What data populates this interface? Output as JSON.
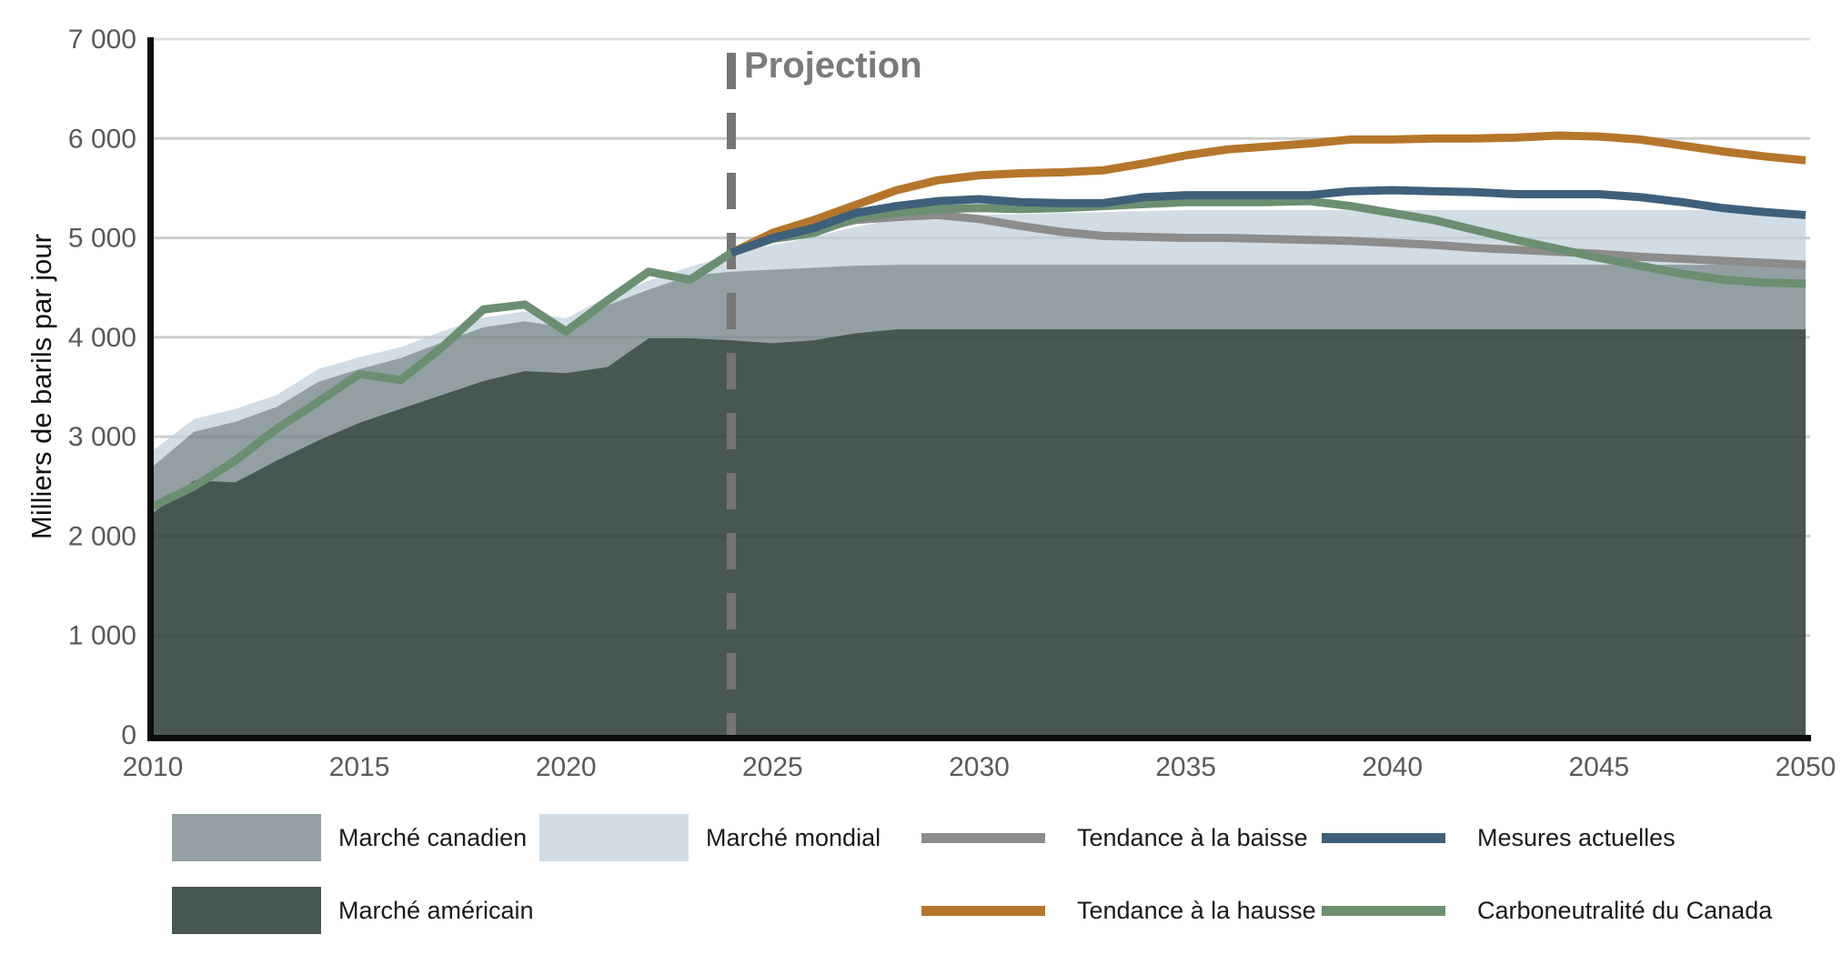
{
  "chart_data": {
    "type": "area+line",
    "title": "",
    "ylabel": "Milliers de barils par jour",
    "xlabel": "",
    "xlim": [
      2010,
      2050
    ],
    "ylim": [
      0,
      7000
    ],
    "grid": "horizontal",
    "annotation": {
      "text": "Projection",
      "x_year": 2024
    },
    "colors": {
      "gridline": "#DCDCDC",
      "axis": "#0a0a0a",
      "tick_label": "#595959",
      "projection_dash": "#757575"
    },
    "y_ticks": {
      "values": [
        0,
        1000,
        2000,
        3000,
        4000,
        5000,
        6000,
        7000
      ],
      "labels": [
        "0",
        "1 000",
        "2 000",
        "3 000",
        "4 000",
        "5 000",
        "6 000",
        "7 000"
      ]
    },
    "x_ticks": {
      "values": [
        2010,
        2015,
        2020,
        2025,
        2030,
        2035,
        2040,
        2045,
        2050
      ],
      "labels": [
        "2010",
        "2015",
        "2020",
        "2025",
        "2030",
        "2035",
        "2040",
        "2045",
        "2050"
      ]
    },
    "x": [
      2010,
      2011,
      2012,
      2013,
      2014,
      2015,
      2016,
      2017,
      2018,
      2019,
      2020,
      2021,
      2022,
      2023,
      2024,
      2025,
      2026,
      2027,
      2028,
      2029,
      2030,
      2031,
      2032,
      2033,
      2034,
      2035,
      2036,
      2037,
      2038,
      2039,
      2040,
      2041,
      2042,
      2043,
      2044,
      2045,
      2046,
      2047,
      2048,
      2049,
      2050
    ],
    "areas": [
      {
        "id": "marche-americain",
        "name": "Marché américain",
        "color": "#485751",
        "values": [
          2230,
          2560,
          2540,
          2760,
          2960,
          3140,
          3280,
          3420,
          3560,
          3660,
          3640,
          3700,
          3990,
          3990,
          3970,
          3940,
          3970,
          4040,
          4080,
          4080,
          4080,
          4080,
          4080,
          4080,
          4080,
          4080,
          4080,
          4080,
          4080,
          4080,
          4080,
          4080,
          4080,
          4080,
          4080,
          4080,
          4080,
          4080,
          4080,
          4080,
          4080
        ]
      },
      {
        "id": "marche-canadien",
        "name": "Marché canadien",
        "color": "#939FA3",
        "values": [
          470,
          490,
          610,
          540,
          590,
          540,
          510,
          530,
          540,
          500,
          460,
          620,
          490,
          630,
          690,
          740,
          730,
          680,
          650,
          650,
          650,
          650,
          650,
          650,
          650,
          650,
          650,
          650,
          650,
          650,
          650,
          650,
          650,
          650,
          650,
          650,
          650,
          650,
          650,
          650,
          650
        ]
      },
      {
        "id": "marche-mondial",
        "name": "Marché mondial",
        "color": "#D2DCE4",
        "values": [
          160,
          130,
          130,
          120,
          130,
          120,
          110,
          110,
          100,
          100,
          90,
          90,
          90,
          90,
          170,
          250,
          310,
          390,
          460,
          490,
          500,
          510,
          520,
          530,
          540,
          550,
          550,
          550,
          550,
          550,
          550,
          550,
          550,
          550,
          550,
          550,
          550,
          550,
          550,
          550,
          540
        ]
      }
    ],
    "lines": [
      {
        "id": "tendance-baisse",
        "name": "Tendance à la baisse",
        "color": "#8C8C8C",
        "values": [
          null,
          null,
          null,
          null,
          null,
          null,
          null,
          null,
          null,
          null,
          null,
          null,
          null,
          null,
          4850,
          4990,
          5080,
          5180,
          5210,
          5230,
          5190,
          5120,
          5060,
          5020,
          5010,
          5000,
          5000,
          4990,
          4980,
          4970,
          4950,
          4930,
          4900,
          4880,
          4860,
          4840,
          4810,
          4790,
          4770,
          4750,
          4730
        ]
      },
      {
        "id": "tendance-hausse",
        "name": "Tendance à la hausse",
        "color": "#B5762B",
        "values": [
          null,
          null,
          null,
          null,
          null,
          null,
          null,
          null,
          null,
          null,
          null,
          null,
          null,
          null,
          4850,
          5050,
          5180,
          5330,
          5480,
          5580,
          5630,
          5650,
          5660,
          5680,
          5750,
          5830,
          5890,
          5920,
          5950,
          5990,
          5990,
          6000,
          6000,
          6010,
          6030,
          6020,
          5990,
          5930,
          5870,
          5820,
          5780
        ]
      },
      {
        "id": "carboneutralite",
        "name": "Carboneutralité du Canada",
        "color": "#6B8F70",
        "values": [
          2300,
          2500,
          2760,
          3080,
          3350,
          3630,
          3570,
          3900,
          4280,
          4330,
          4060,
          4370,
          4660,
          4580,
          4850,
          4990,
          5050,
          5200,
          5250,
          5290,
          5300,
          5290,
          5300,
          5320,
          5340,
          5360,
          5360,
          5360,
          5370,
          5320,
          5250,
          5180,
          5080,
          4980,
          4890,
          4800,
          4720,
          4640,
          4580,
          4550,
          4540
        ]
      },
      {
        "id": "mesures-actuelles",
        "name": "Mesures actuelles",
        "color": "#3F607A",
        "values": [
          null,
          null,
          null,
          null,
          null,
          null,
          null,
          null,
          null,
          null,
          null,
          null,
          null,
          null,
          4850,
          5000,
          5100,
          5250,
          5320,
          5370,
          5390,
          5360,
          5350,
          5350,
          5410,
          5430,
          5430,
          5430,
          5430,
          5470,
          5480,
          5470,
          5460,
          5440,
          5440,
          5440,
          5410,
          5360,
          5300,
          5260,
          5230
        ]
      }
    ]
  },
  "legend": {
    "items": [
      {
        "label": "Marché canadien",
        "swatch": "area",
        "color": "#939FA3"
      },
      {
        "label": "Marché mondial",
        "swatch": "area",
        "color": "#D2DCE4"
      },
      {
        "label": "Tendance à la baisse",
        "swatch": "line",
        "color": "#8C8C8C"
      },
      {
        "label": "Mesures actuelles",
        "swatch": "line",
        "color": "#3F607A"
      },
      {
        "label": "Marché américain",
        "swatch": "area",
        "color": "#485751"
      },
      {
        "label": "Tendance à la hausse",
        "swatch": "line",
        "color": "#B5762B"
      },
      {
        "label": "Carboneutralité du Canada",
        "swatch": "line",
        "color": "#6B8F70"
      }
    ]
  }
}
